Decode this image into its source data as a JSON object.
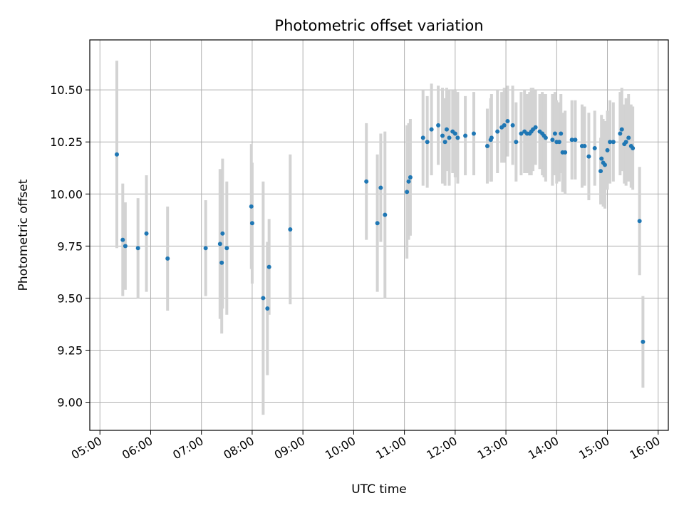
{
  "chart_data": {
    "type": "scatter",
    "title": "Photometric offset variation",
    "xlabel": "UTC time",
    "ylabel": "Photometric offset",
    "xlim_hours": [
      4.8,
      16.2
    ],
    "ylim": [
      8.865,
      10.74
    ],
    "x_ticks": [
      "05:00",
      "06:00",
      "07:00",
      "08:00",
      "09:00",
      "10:00",
      "11:00",
      "12:00",
      "13:00",
      "14:00",
      "15:00",
      "16:00"
    ],
    "y_ticks": [
      "9.00",
      "9.25",
      "9.50",
      "9.75",
      "10.00",
      "10.25",
      "10.50"
    ],
    "grid": true,
    "marker_color": "#1f77b4",
    "errorbar_color": "#d3d3d3",
    "points": [
      [
        "05:20",
        10.19,
        0.45
      ],
      [
        "05:27",
        9.78,
        0.27
      ],
      [
        "05:30",
        9.75,
        0.21
      ],
      [
        "05:45",
        9.74,
        0.24
      ],
      [
        "05:55",
        9.81,
        0.28
      ],
      [
        "06:20",
        9.69,
        0.25
      ],
      [
        "07:05",
        9.74,
        0.23
      ],
      [
        "07:22",
        9.76,
        0.36
      ],
      [
        "07:24",
        9.67,
        0.34
      ],
      [
        "07:25",
        9.81,
        0.36
      ],
      [
        "07:30",
        9.74,
        0.32
      ],
      [
        "07:59",
        9.94,
        0.3
      ],
      [
        "08:00",
        9.86,
        0.29
      ],
      [
        "08:13",
        9.5,
        0.56
      ],
      [
        "08:18",
        9.45,
        0.32
      ],
      [
        "08:20",
        9.65,
        0.23
      ],
      [
        "08:45",
        9.83,
        0.36
      ],
      [
        "10:15",
        10.06,
        0.28
      ],
      [
        "10:28",
        9.86,
        0.33
      ],
      [
        "10:32",
        10.03,
        0.26
      ],
      [
        "10:37",
        9.9,
        0.4
      ],
      [
        "11:03",
        10.01,
        0.32
      ],
      [
        "11:05",
        10.06,
        0.28
      ],
      [
        "11:07",
        10.08,
        0.28
      ],
      [
        "11:22",
        10.27,
        0.23
      ],
      [
        "11:27",
        10.25,
        0.22
      ],
      [
        "11:32",
        10.31,
        0.22
      ],
      [
        "11:40",
        10.33,
        0.19
      ],
      [
        "11:45",
        10.28,
        0.23
      ],
      [
        "11:48",
        10.25,
        0.21
      ],
      [
        "11:50",
        10.31,
        0.2
      ],
      [
        "11:53",
        10.27,
        0.23
      ],
      [
        "11:57",
        10.3,
        0.2
      ],
      [
        "12:00",
        10.29,
        0.21
      ],
      [
        "12:03",
        10.27,
        0.22
      ],
      [
        "12:12",
        10.28,
        0.19
      ],
      [
        "12:22",
        10.29,
        0.2
      ],
      [
        "12:38",
        10.23,
        0.18
      ],
      [
        "12:42",
        10.26,
        0.2
      ],
      [
        "12:43",
        10.27,
        0.21
      ],
      [
        "12:50",
        10.3,
        0.2
      ],
      [
        "12:55",
        10.32,
        0.17
      ],
      [
        "12:58",
        10.33,
        0.18
      ],
      [
        "13:02",
        10.35,
        0.17
      ],
      [
        "13:08",
        10.33,
        0.19
      ],
      [
        "13:12",
        10.25,
        0.19
      ],
      [
        "13:18",
        10.29,
        0.2
      ],
      [
        "13:22",
        10.3,
        0.2
      ],
      [
        "13:25",
        10.29,
        0.19
      ],
      [
        "13:28",
        10.29,
        0.2
      ],
      [
        "13:30",
        10.3,
        0.21
      ],
      [
        "13:32",
        10.31,
        0.2
      ],
      [
        "13:35",
        10.32,
        0.18
      ],
      [
        "13:40",
        10.3,
        0.18
      ],
      [
        "13:43",
        10.29,
        0.2
      ],
      [
        "13:45",
        10.28,
        0.2
      ],
      [
        "13:47",
        10.27,
        0.21
      ],
      [
        "13:55",
        10.26,
        0.22
      ],
      [
        "13:58",
        10.29,
        0.2
      ],
      [
        "14:00",
        10.25,
        0.2
      ],
      [
        "14:03",
        10.25,
        0.19
      ],
      [
        "14:05",
        10.29,
        0.19
      ],
      [
        "14:07",
        10.2,
        0.19
      ],
      [
        "14:10",
        10.2,
        0.2
      ],
      [
        "14:18",
        10.26,
        0.19
      ],
      [
        "14:22",
        10.26,
        0.19
      ],
      [
        "14:30",
        10.23,
        0.2
      ],
      [
        "14:33",
        10.23,
        0.19
      ],
      [
        "14:38",
        10.18,
        0.21
      ],
      [
        "14:45",
        10.22,
        0.18
      ],
      [
        "14:52",
        10.11,
        0.16
      ],
      [
        "14:53",
        10.17,
        0.21
      ],
      [
        "14:55",
        10.15,
        0.21
      ],
      [
        "14:57",
        10.14,
        0.21
      ],
      [
        "15:00",
        10.21,
        0.19
      ],
      [
        "15:03",
        10.25,
        0.2
      ],
      [
        "15:07",
        10.25,
        0.19
      ],
      [
        "15:15",
        10.29,
        0.2
      ],
      [
        "15:17",
        10.31,
        0.2
      ],
      [
        "15:20",
        10.24,
        0.19
      ],
      [
        "15:22",
        10.25,
        0.21
      ],
      [
        "15:25",
        10.27,
        0.21
      ],
      [
        "15:28",
        10.23,
        0.2
      ],
      [
        "15:30",
        10.22,
        0.2
      ],
      [
        "15:38",
        9.87,
        0.26
      ],
      [
        "15:42",
        9.29,
        0.22
      ]
    ]
  }
}
